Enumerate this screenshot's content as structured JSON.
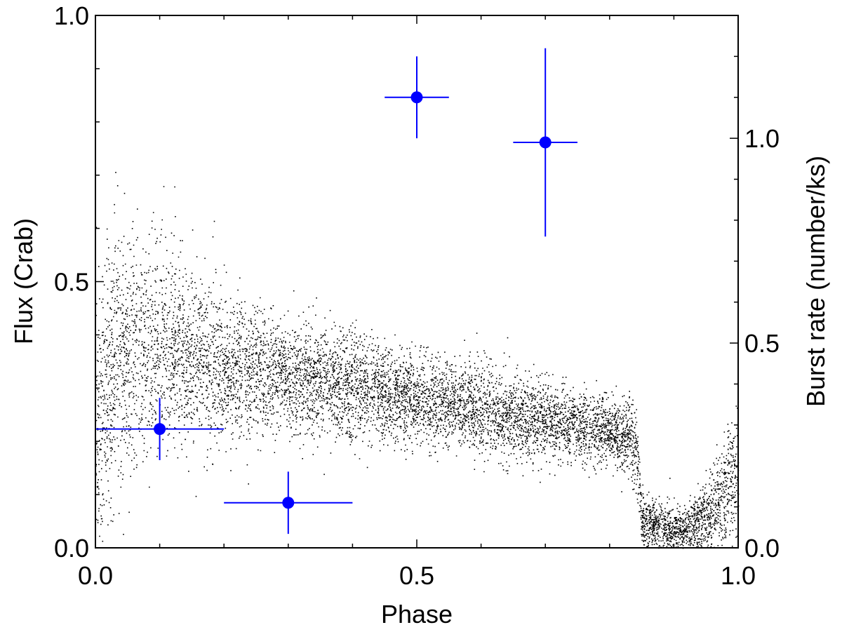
{
  "chart_data": {
    "type": "scatter",
    "title": "",
    "xlabel": "Phase",
    "ylabel": "Flux (Crab)",
    "y2label": "Burst rate (number/ks)",
    "xlim": [
      0.0,
      1.0
    ],
    "ylim": [
      0.0,
      1.0
    ],
    "y2lim": [
      0.0,
      1.3
    ],
    "x_ticks": [
      0.0,
      0.5,
      1.0
    ],
    "x_tick_labels": [
      "0.0",
      "0.5",
      "1.0"
    ],
    "y_ticks": [
      0.0,
      0.5,
      1.0
    ],
    "y_tick_labels": [
      "0.0",
      "0.5",
      "1.0"
    ],
    "y2_ticks": [
      0.0,
      0.5,
      1.0
    ],
    "y2_tick_labels": [
      "0.0",
      "0.5",
      "1.0"
    ],
    "grid": false,
    "colors": {
      "flux_points": "#000000",
      "burst_rate": "#0000ff"
    },
    "flux_profile": [
      {
        "phase": 0.0,
        "mean": 0.22,
        "spread": 0.14
      },
      {
        "phase": 0.03,
        "mean": 0.35,
        "spread": 0.12
      },
      {
        "phase": 0.1,
        "mean": 0.38,
        "spread": 0.1
      },
      {
        "phase": 0.2,
        "mean": 0.34,
        "spread": 0.07
      },
      {
        "phase": 0.3,
        "mean": 0.32,
        "spread": 0.05
      },
      {
        "phase": 0.4,
        "mean": 0.3,
        "spread": 0.05
      },
      {
        "phase": 0.5,
        "mean": 0.28,
        "spread": 0.04
      },
      {
        "phase": 0.6,
        "mean": 0.26,
        "spread": 0.04
      },
      {
        "phase": 0.7,
        "mean": 0.24,
        "spread": 0.035
      },
      {
        "phase": 0.8,
        "mean": 0.22,
        "spread": 0.03
      },
      {
        "phase": 0.84,
        "mean": 0.2,
        "spread": 0.04
      },
      {
        "phase": 0.85,
        "mean": 0.05,
        "spread": 0.025
      },
      {
        "phase": 0.92,
        "mean": 0.03,
        "spread": 0.02
      },
      {
        "phase": 0.96,
        "mean": 0.07,
        "spread": 0.04
      },
      {
        "phase": 1.0,
        "mean": 0.15,
        "spread": 0.06
      }
    ],
    "series": [
      {
        "axis": "y2",
        "x": [
          0.1,
          0.3,
          0.5,
          0.7
        ],
        "xerr": [
          0.1,
          0.1,
          0.05,
          0.05
        ],
        "y": [
          0.29,
          0.11,
          1.1,
          0.99
        ],
        "yerr": [
          0.076,
          0.076,
          0.1,
          0.23
        ]
      }
    ]
  }
}
